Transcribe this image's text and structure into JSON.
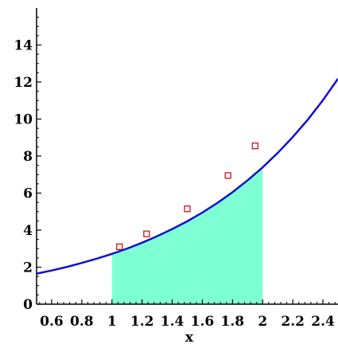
{
  "chart_data": {
    "type": "line",
    "xlabel": "x",
    "ylabel": "",
    "xlim": [
      0.5,
      2.5
    ],
    "ylim": [
      0,
      16
    ],
    "x_ticks": [
      {
        "value": 0.6,
        "label": "0.6"
      },
      {
        "value": 0.8,
        "label": "0.8"
      },
      {
        "value": 1.0,
        "label": "1"
      },
      {
        "value": 1.2,
        "label": "1.2"
      },
      {
        "value": 1.4,
        "label": "1.4"
      },
      {
        "value": 1.6,
        "label": "1.6"
      },
      {
        "value": 1.8,
        "label": "1.8"
      },
      {
        "value": 2.0,
        "label": "2"
      },
      {
        "value": 2.2,
        "label": "2.2"
      },
      {
        "value": 2.4,
        "label": "2.4"
      }
    ],
    "y_ticks": [
      {
        "value": 0,
        "label": "0"
      },
      {
        "value": 2,
        "label": "2"
      },
      {
        "value": 4,
        "label": "4"
      },
      {
        "value": 6,
        "label": "6"
      },
      {
        "value": 8,
        "label": "8"
      },
      {
        "value": 10,
        "label": "10"
      },
      {
        "value": 12,
        "label": "12"
      },
      {
        "value": 14,
        "label": "14"
      }
    ],
    "curve": {
      "color": "#1010cc",
      "points": [
        [
          0.5,
          1.65
        ],
        [
          0.6,
          1.82
        ],
        [
          0.7,
          2.01
        ],
        [
          0.8,
          2.23
        ],
        [
          0.9,
          2.46
        ],
        [
          1.0,
          2.72
        ],
        [
          1.1,
          3.0
        ],
        [
          1.2,
          3.32
        ],
        [
          1.3,
          3.67
        ],
        [
          1.4,
          4.06
        ],
        [
          1.5,
          4.48
        ],
        [
          1.6,
          4.95
        ],
        [
          1.7,
          5.47
        ],
        [
          1.8,
          6.05
        ],
        [
          1.9,
          6.69
        ],
        [
          2.0,
          7.39
        ],
        [
          2.1,
          8.17
        ],
        [
          2.2,
          9.03
        ],
        [
          2.3,
          9.97
        ],
        [
          2.4,
          11.02
        ],
        [
          2.5,
          12.18
        ]
      ]
    },
    "shaded_region": {
      "x_from": 1.0,
      "x_to": 2.0,
      "color": "#7fffd4"
    },
    "markers": {
      "color": "#cc0000",
      "points": [
        [
          1.05,
          3.1
        ],
        [
          1.23,
          3.8
        ],
        [
          1.5,
          5.15
        ],
        [
          1.77,
          6.95
        ],
        [
          1.95,
          8.55
        ]
      ]
    }
  }
}
